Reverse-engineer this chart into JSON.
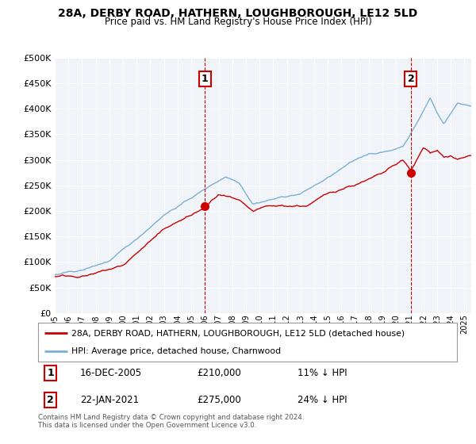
{
  "title": "28A, DERBY ROAD, HATHERN, LOUGHBOROUGH, LE12 5LD",
  "subtitle": "Price paid vs. HM Land Registry's House Price Index (HPI)",
  "legend_line1": "28A, DERBY ROAD, HATHERN, LOUGHBOROUGH, LE12 5LD (detached house)",
  "legend_line2": "HPI: Average price, detached house, Charnwood",
  "sale1_date": "16-DEC-2005",
  "sale1_price": 210000,
  "sale1_hpi_diff": "11% ↓ HPI",
  "sale1_x": 2006.0,
  "sale2_date": "22-JAN-2021",
  "sale2_price": 275000,
  "sale2_hpi_diff": "24% ↓ HPI",
  "sale2_x": 2021.08,
  "footer": "Contains HM Land Registry data © Crown copyright and database right 2024.\nThis data is licensed under the Open Government Licence v3.0.",
  "ylim": [
    0,
    500000
  ],
  "xlim_start": 1995,
  "xlim_end": 2025.5,
  "property_color": "#cc0000",
  "hpi_color": "#7ab0d4",
  "background_color": "#f0f4f8",
  "plot_bg_color": "#f0f4f8",
  "grid_color": "#ffffff",
  "sale_marker_color": "#cc0000",
  "dashed_line_color": "#cc0000"
}
